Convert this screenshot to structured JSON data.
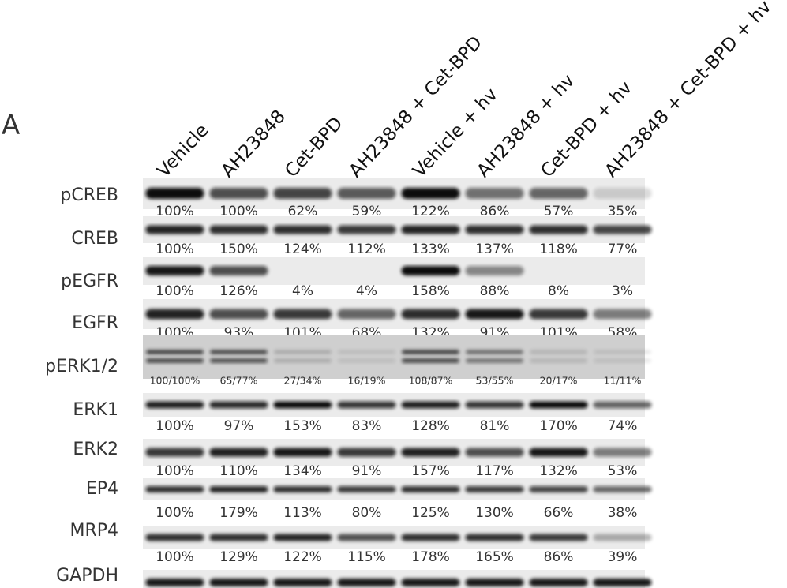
{
  "panel_label": "A",
  "columns": [
    "Vehicle",
    "AH23848",
    "Cet-BPD",
    "AH23848 + Cet-BPD",
    "Vehicle + hv",
    "AH23848 + hv",
    "Cet-BPD + hv",
    "AH23848 + Cet-BPD + hv"
  ],
  "rows": [
    {
      "label": "pCREB",
      "values": [
        "100%",
        "100%",
        "62%",
        "59%",
        "122%",
        "86%",
        "57%",
        "35%"
      ]
    },
    {
      "label": "CREB",
      "values": [
        "100%",
        "150%",
        "124%",
        "112%",
        "133%",
        "137%",
        "118%",
        "77%"
      ]
    },
    {
      "label": "pEGFR",
      "values": [
        "100%",
        "126%",
        "4%",
        "4%",
        "158%",
        "88%",
        "8%",
        "3%"
      ]
    },
    {
      "label": "EGFR",
      "values": [
        "100%",
        "93%",
        "101%",
        "68%",
        "132%",
        "91%",
        "101%",
        "58%"
      ]
    },
    {
      "label": "pERK1/2",
      "values": [
        "100/100%",
        "65/77%",
        "27/34%",
        "16/19%",
        "108/87%",
        "53/55%",
        "20/17%",
        "11/11%"
      ]
    },
    {
      "label": "ERK1",
      "values": [
        "100%",
        "97%",
        "153%",
        "83%",
        "128%",
        "81%",
        "170%",
        "74%"
      ]
    },
    {
      "label": "ERK2",
      "values": [
        "100%",
        "110%",
        "134%",
        "91%",
        "157%",
        "117%",
        "132%",
        "53%"
      ]
    },
    {
      "label": "EP4",
      "values": [
        "100%",
        "179%",
        "113%",
        "80%",
        "125%",
        "130%",
        "66%",
        "38%"
      ]
    },
    {
      "label": "MRP4",
      "values": [
        "100%",
        "129%",
        "122%",
        "115%",
        "178%",
        "165%",
        "86%",
        "39%"
      ]
    },
    {
      "label": "GAPDH"
    }
  ]
}
